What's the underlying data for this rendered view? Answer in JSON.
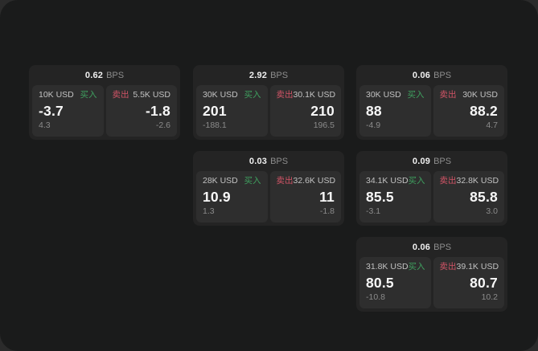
{
  "window": {
    "outer_bg": "#2b2b2b",
    "panel_bg": "#1a1b1b",
    "card_bg": "#242424",
    "tile_bg": "#2e2e2e",
    "buy_color": "#3fa05f",
    "sell_color": "#d15466"
  },
  "labels": {
    "bps_unit": "BPS",
    "buy": "买入",
    "sell": "卖出"
  },
  "cards": [
    {
      "bps": "0.62",
      "buy": {
        "notional": "10K USD",
        "value": "-3.7",
        "delta": "4.3"
      },
      "sell": {
        "notional": "5.5K USD",
        "value": "-1.8",
        "delta": "-2.6"
      }
    },
    {
      "bps": "2.92",
      "buy": {
        "notional": "30K USD",
        "value": "201",
        "delta": "-188.1"
      },
      "sell": {
        "notional": "30.1K USD",
        "value": "210",
        "delta": "196.5"
      }
    },
    {
      "bps": "0.06",
      "buy": {
        "notional": "30K USD",
        "value": "88",
        "delta": "-4.9"
      },
      "sell": {
        "notional": "30K USD",
        "value": "88.2",
        "delta": "4.7"
      }
    },
    {
      "bps": "0.03",
      "buy": {
        "notional": "28K USD",
        "value": "10.9",
        "delta": "1.3"
      },
      "sell": {
        "notional": "32.6K USD",
        "value": "11",
        "delta": "-1.8"
      }
    },
    {
      "bps": "0.09",
      "buy": {
        "notional": "34.1K USD",
        "value": "85.5",
        "delta": "-3.1"
      },
      "sell": {
        "notional": "32.8K USD",
        "value": "85.8",
        "delta": "3.0"
      }
    },
    {
      "bps": "0.06",
      "buy": {
        "notional": "31.8K USD",
        "value": "80.5",
        "delta": "-10.8"
      },
      "sell": {
        "notional": "39.1K USD",
        "value": "80.7",
        "delta": "10.2"
      }
    }
  ]
}
